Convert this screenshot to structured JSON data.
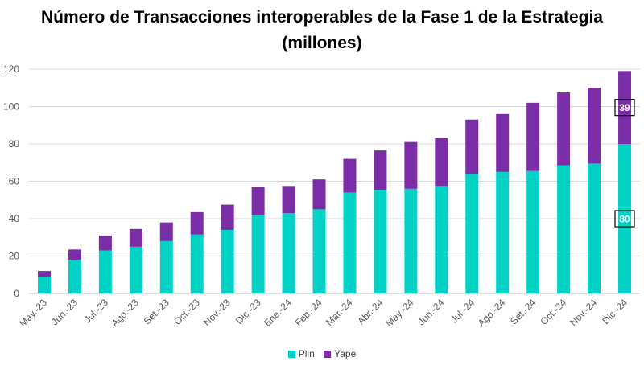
{
  "title_line1": "Número de Transacciones interoperables de la Fase 1 de la Estrategia",
  "title_line2": "(millones)",
  "colors": {
    "plin": "#00D2C6",
    "yape": "#7B2DA8",
    "grid": "#D9D9D9",
    "axis_text": "#595959"
  },
  "chart_data": {
    "type": "bar",
    "stacked": true,
    "categories": [
      "May.-23",
      "Jun.-23",
      "Jul.-23",
      "Ago.-23",
      "Set.-23",
      "Oct.-23",
      "Nov.-23",
      "Dic.-23",
      "Ene.-24",
      "Feb.-24",
      "Mar.-24",
      "Abr.-24",
      "May.-24",
      "Jun.-24",
      "Jul.-24",
      "Ago.-24",
      "Set.-24",
      "Oct.-24",
      "Nov.-24",
      "Dic.-24"
    ],
    "series": [
      {
        "name": "Plin",
        "values": [
          9,
          18,
          23,
          25,
          28,
          31.5,
          34,
          42,
          43,
          45,
          54,
          55.5,
          56,
          57.5,
          64,
          65,
          65.5,
          68.5,
          69.5,
          80
        ]
      },
      {
        "name": "Yape",
        "values": [
          3,
          5.5,
          8,
          9.5,
          10,
          12,
          13.5,
          15,
          14.5,
          16,
          18,
          21,
          25,
          25.5,
          29,
          31,
          36.5,
          39,
          40.5,
          39
        ]
      }
    ],
    "data_labels": [
      {
        "category": "Dic.-24",
        "series": "Plin",
        "text": "80"
      },
      {
        "category": "Dic.-24",
        "series": "Yape",
        "text": "39"
      }
    ],
    "ylim": [
      0,
      120
    ],
    "yticks": [
      0,
      20,
      40,
      60,
      80,
      100,
      120
    ],
    "grid": true,
    "legend_position": "bottom"
  }
}
